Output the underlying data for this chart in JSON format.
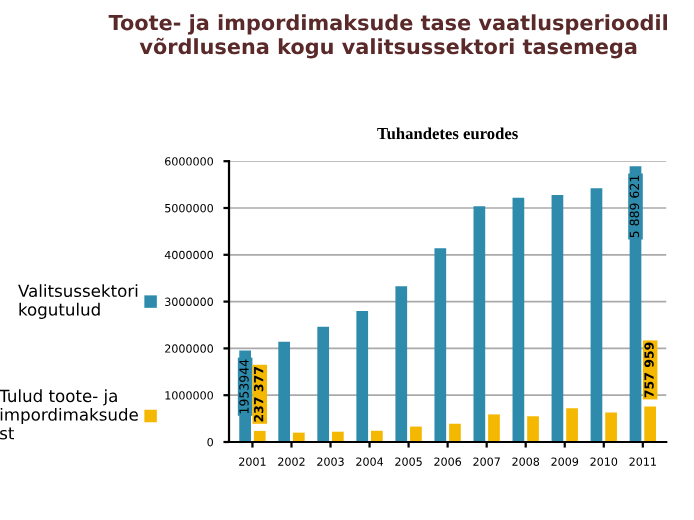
{
  "chart_data": {
    "type": "bar",
    "title": "Toote- ja impordimaksude tase vaatlusperioodil võrdlusena kogu valitsussektori tasemega",
    "subtitle": "Tuhandetes eurodes",
    "categories": [
      "2001",
      "2002",
      "2003",
      "2004",
      "2005",
      "2006",
      "2007",
      "2008",
      "2009",
      "2010",
      "2011"
    ],
    "series": [
      {
        "name": "Valitsussektori kogutulud",
        "color": "#2e8bab",
        "values": [
          1953944,
          2140000,
          2460000,
          2800000,
          3330000,
          4140000,
          5040000,
          5220000,
          5280000,
          5420000,
          5889621
        ],
        "value_labels": [
          "1953944",
          null,
          null,
          null,
          null,
          null,
          null,
          null,
          null,
          null,
          "5 889 621"
        ]
      },
      {
        "name": "Tulud toote- ja impordimaksude st",
        "color": "#f5b800",
        "values": [
          237377,
          200000,
          220000,
          240000,
          330000,
          390000,
          590000,
          550000,
          720000,
          630000,
          757959
        ],
        "value_labels": [
          "237 377",
          null,
          null,
          null,
          null,
          null,
          null,
          null,
          null,
          null,
          "757 959"
        ]
      }
    ],
    "legend": "left",
    "ylim": [
      0,
      6000000
    ],
    "yticks": [
      0,
      1000000,
      2000000,
      3000000,
      4000000,
      5000000,
      6000000
    ],
    "grid": "y"
  }
}
